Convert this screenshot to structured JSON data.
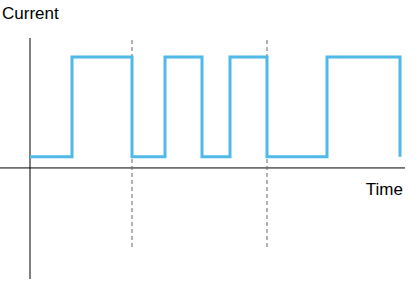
{
  "chart_data": {
    "type": "line",
    "x_label": "Time",
    "y_label": "Current",
    "x": [
      0,
      4.2,
      4.2,
      10.2,
      10.2,
      13.5,
      13.5,
      17.2,
      17.2,
      20,
      20,
      23.7,
      23.7,
      29.7,
      29.7,
      37,
      37
    ],
    "series": [
      {
        "name": "Current",
        "color": "#4fb9e8",
        "line_style": "solid",
        "values": [
          0.1,
          0.1,
          1,
          1,
          0.1,
          0.1,
          1,
          1,
          0.1,
          0.1,
          1,
          1,
          0.1,
          0.1,
          1,
          1,
          0.1
        ]
      }
    ],
    "reference_lines_x": [
      10.2,
      23.7
    ],
    "xlim": [
      -3,
      37.5
    ],
    "ylim": [
      -1.0,
      1.17
    ],
    "tick_labels": false,
    "grid": false
  }
}
